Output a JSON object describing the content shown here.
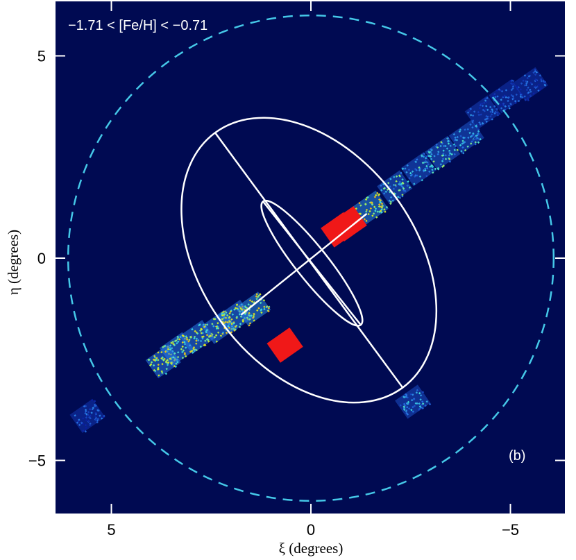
{
  "chart_data": {
    "type": "scatter",
    "title": "",
    "xlabel": "ξ (degrees)",
    "ylabel": "η (degrees)",
    "xlim": [
      6.4,
      -6.4
    ],
    "ylim": [
      -6.5,
      6.2
    ],
    "x_reversed": true,
    "x_ticks": [
      5,
      0,
      -5
    ],
    "x_tick_labels": [
      "5",
      "0",
      "−5"
    ],
    "y_ticks": [
      5,
      0,
      -5
    ],
    "y_tick_labels": [
      "5",
      "0",
      "−5"
    ],
    "metallicity_label": "−1.71 < [Fe/H] < −0.71",
    "panel_label": "(b)",
    "background_color": "#000a52",
    "grid": false,
    "boundary_circle": {
      "center": [
        0,
        0
      ],
      "radius": 6.0,
      "style": "dashed",
      "color": "#45c8e8"
    },
    "ellipses": [
      {
        "name": "outer",
        "center": [
          0,
          -0.2
        ],
        "semi_major": 3.9,
        "semi_minor": 2.65,
        "major_axis_endpoints": [
          [
            2.4,
            3.1
          ],
          [
            -2.3,
            -3.2
          ]
        ],
        "minor_axis_endpoints": [
          [
            1.75,
            -1.4
          ],
          [
            -1.4,
            1.1
          ]
        ]
      },
      {
        "name": "inner",
        "center": [
          0,
          -0.1
        ],
        "semi_major": 1.9,
        "semi_minor": 0.4,
        "major_axis_endpoints": [
          [
            1.2,
            1.4
          ],
          [
            -1.25,
            -1.65
          ]
        ]
      }
    ],
    "fields": [
      {
        "x": -5.5,
        "y": 4.3,
        "density": 0.15
      },
      {
        "x": -4.9,
        "y": 4.0,
        "density": 0.15
      },
      {
        "x": -4.3,
        "y": 3.6,
        "density": 0.2
      },
      {
        "x": -3.9,
        "y": 3.0,
        "density": 0.35
      },
      {
        "x": -3.3,
        "y": 2.6,
        "density": 0.4
      },
      {
        "x": -2.7,
        "y": 2.2,
        "density": 0.35
      },
      {
        "x": -2.1,
        "y": 1.75,
        "density": 0.4
      },
      {
        "x": -1.5,
        "y": 1.25,
        "density": 0.6
      },
      {
        "x": -0.95,
        "y": 0.85,
        "density": 1.0
      },
      {
        "x": -0.7,
        "y": 0.7,
        "density": 1.0
      },
      {
        "x": 1.45,
        "y": -1.25,
        "density": 0.6
      },
      {
        "x": 1.9,
        "y": -1.45,
        "density": 0.55
      },
      {
        "x": 2.3,
        "y": -1.7,
        "density": 0.55
      },
      {
        "x": 2.85,
        "y": -1.95,
        "density": 0.55
      },
      {
        "x": 3.35,
        "y": -2.25,
        "density": 0.55
      },
      {
        "x": 3.7,
        "y": -2.55,
        "density": 0.55
      },
      {
        "x": 5.6,
        "y": -3.9,
        "density": 0.15
      },
      {
        "x": 0.65,
        "y": -2.15,
        "density": 1.0
      },
      {
        "x": -2.55,
        "y": -3.55,
        "density": 0.3
      }
    ]
  }
}
